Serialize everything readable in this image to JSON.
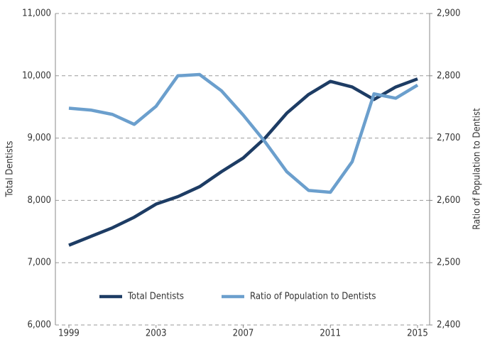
{
  "chart_data": {
    "type": "line",
    "x": [
      1999,
      2000,
      2001,
      2002,
      2003,
      2004,
      2005,
      2006,
      2007,
      2008,
      2009,
      2010,
      2011,
      2012,
      2013,
      2014,
      2015
    ],
    "series": [
      {
        "name": "Total Dentists",
        "color": "#1d3c64",
        "values": [
          7280,
          7420,
          7560,
          7730,
          7940,
          8060,
          8220,
          8460,
          8680,
          9000,
          9400,
          9700,
          9910,
          9820,
          9620,
          9820,
          9950
        ]
      },
      {
        "name": "Ratio of Population to Dentists",
        "color": "#6b9fcd",
        "axis": "y2",
        "values": [
          2748,
          2745,
          2738,
          2722,
          2751,
          2800,
          2802,
          2776,
          2737,
          2694,
          2646,
          2616,
          2613,
          2662,
          2771,
          2764,
          2785
        ]
      }
    ],
    "ylabel": "Total Dentists",
    "y2label": "Ratio of Population to Dentist",
    "xlim": [
      1999,
      2015
    ],
    "xticks": [
      1999,
      2003,
      2007,
      2011,
      2015
    ],
    "ylim": [
      6000,
      11000
    ],
    "yticks": [
      {
        "value": 6000,
        "label": "6,000"
      },
      {
        "value": 7000,
        "label": "7,000"
      },
      {
        "value": 8000,
        "label": "8,000"
      },
      {
        "value": 9000,
        "label": "9,000"
      },
      {
        "value": 10000,
        "label": "10,000"
      },
      {
        "value": 11000,
        "label": "11,000"
      }
    ],
    "y2lim": [
      2400,
      2900
    ],
    "y2ticks": [
      {
        "value": 2400,
        "label": "2,400"
      },
      {
        "value": 2500,
        "label": "2,500"
      },
      {
        "value": 2600,
        "label": "2,600"
      },
      {
        "value": 2700,
        "label": "2,700"
      },
      {
        "value": 2800,
        "label": "2,800"
      },
      {
        "value": 2900,
        "label": "2,900"
      }
    ],
    "grid": true,
    "legend": "lower center"
  }
}
